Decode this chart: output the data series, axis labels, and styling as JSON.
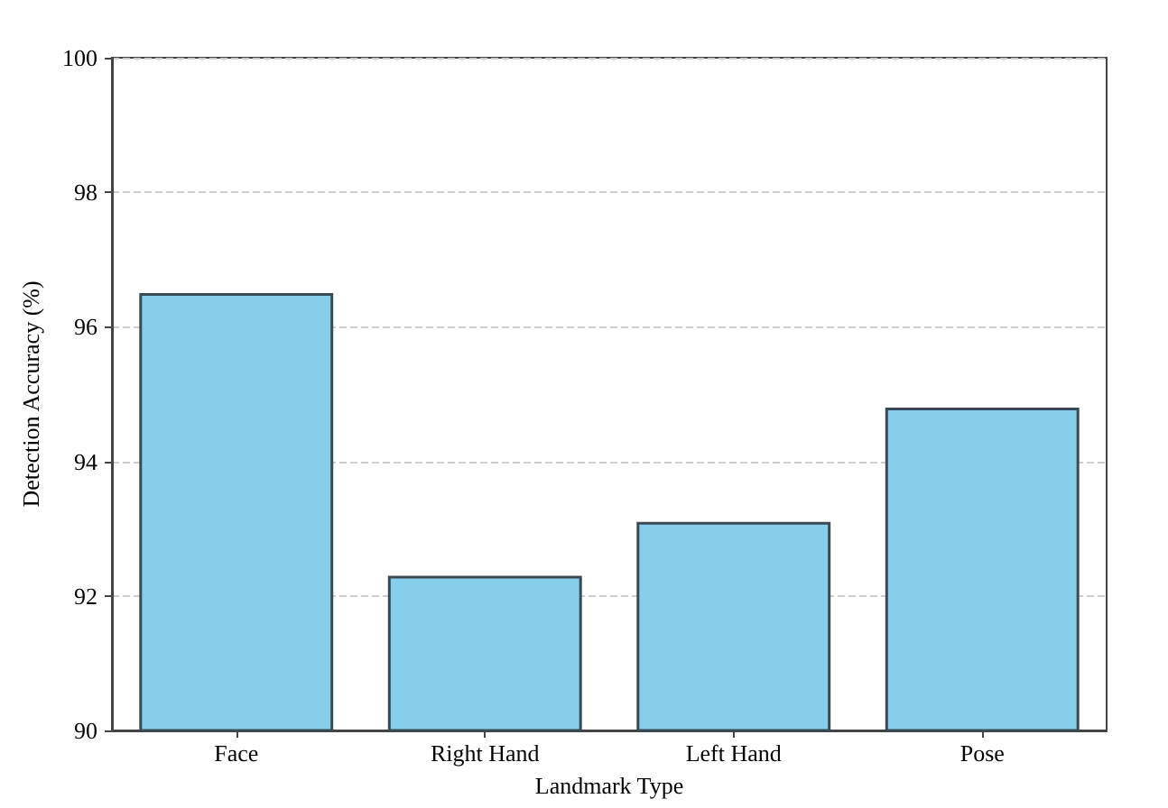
{
  "chart_data": {
    "type": "bar",
    "xlabel": "Landmark Type",
    "ylabel": "Detection Accuracy (%)",
    "categories": [
      "Face",
      "Right Hand",
      "Left Hand",
      "Pose"
    ],
    "values": [
      96.5,
      92.3,
      93.1,
      94.8
    ],
    "color": "#87ceeb",
    "ylim": [
      90,
      100
    ],
    "yticks": [
      90,
      92,
      94,
      96,
      98,
      100
    ],
    "grid": "y"
  }
}
